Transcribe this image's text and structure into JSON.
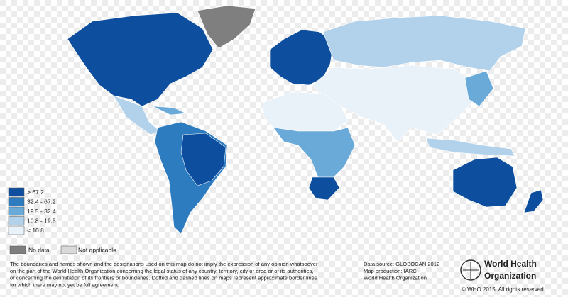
{
  "legend": {
    "items": [
      {
        "label": "> 67.2",
        "color": "#0d4f9e"
      },
      {
        "label": "32.4 - 67.2",
        "color": "#2e7cc0"
      },
      {
        "label": "19.5 - 32.4",
        "color": "#6aaad8"
      },
      {
        "label": "10.8 - 19.5",
        "color": "#b2d2ec"
      },
      {
        "label": "< 10.8",
        "color": "#e9f1f9"
      }
    ],
    "extra": [
      {
        "label": "No data",
        "color": "#7f7f7f"
      },
      {
        "label": "Not applicable",
        "color": "#d9d9d9"
      }
    ]
  },
  "disclaimer": [
    "The boundaries and names shown and the designations used on this map do not imply the expression of any opinion whatsoever",
    "on the part of the World Health Organization concerning the legal status of any country, territory, city or area or of its authorities,",
    "or concerning the delimitation of its frontiers or boundaries. Dotted and dashed lines on maps represent approximate border lines",
    "for which there may not yet be full agreement."
  ],
  "source": [
    "Data source: GLOBOCAN 2012",
    "Map production: IARC",
    "World Health Organization"
  ],
  "logo": {
    "line1": "World Health",
    "line2": "Organization"
  },
  "copyright": "© WHO 2015. All rights reserved"
}
